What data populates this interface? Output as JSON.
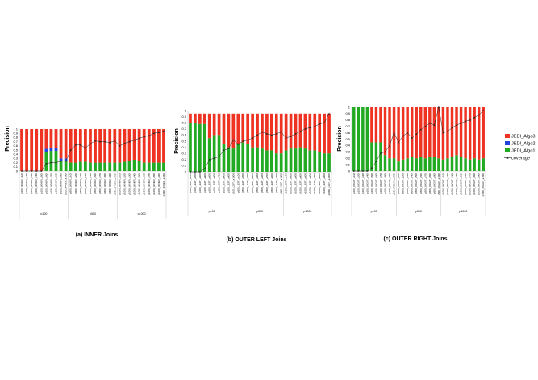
{
  "colors": {
    "algo3": "#ee3322",
    "algo2": "#2244dd",
    "algo1": "#22aa22",
    "coverage": "#222222",
    "axis": "#999999"
  },
  "legend": [
    "JEDI_Algo3",
    "JEDI_Algo2",
    "JEDI_Algo1",
    "coverage"
  ],
  "chart_data": [
    {
      "type": "bar",
      "stacked": true,
      "title": "(a) INNER Joins",
      "ylabel": "Precision",
      "ylim": [
        0,
        1
      ],
      "yticks": [
        "0",
        "0.1",
        "0.2",
        "0.3",
        "0.4",
        "0.5",
        "0.6",
        "0.7",
        "0.8",
        "0.9",
        "1"
      ],
      "groups": [
        {
          "label": "p100",
          "count": 10
        },
        {
          "label": "p500",
          "count": 10
        },
        {
          "label": "p1000",
          "count": 10
        }
      ],
      "categories": [
        "p100_INNER_a100",
        "p100_INNER_a200",
        "p100_INNER_a300",
        "p100_INNER_a400",
        "p100_INNER_a500",
        "p100_INNER_a600",
        "p100_INNER_a700",
        "p100_INNER_a800",
        "p100_INNER_a900",
        "p100_INNER_a1000",
        "p500_INNER_a100",
        "p500_INNER_a200",
        "p500_INNER_a300",
        "p500_INNER_a400",
        "p500_INNER_a500",
        "p500_INNER_a600",
        "p500_INNER_a700",
        "p500_INNER_a800",
        "p500_INNER_a900",
        "p500_INNER_a1000",
        "p1000_INNER_a100",
        "p1000_INNER_a200",
        "p1000_INNER_a300",
        "p1000_INNER_a400",
        "p1000_INNER_a500",
        "p1000_INNER_a600",
        "p1000_INNER_a700",
        "p1000_INNER_a800",
        "p1000_INNER_a900",
        "p1000_INNER_a1000"
      ],
      "series": [
        {
          "name": "JEDI_Algo1",
          "values": [
            0,
            0,
            0,
            0,
            0,
            0.45,
            0.48,
            0.48,
            0.25,
            0.25,
            0.2,
            0.2,
            0.22,
            0.22,
            0.2,
            0.2,
            0.2,
            0.2,
            0.2,
            0.2,
            0.2,
            0.22,
            0.25,
            0.27,
            0.25,
            0.2,
            0.2,
            0.2,
            0.2,
            0.2
          ]
        },
        {
          "name": "JEDI_Algo2",
          "values": [
            0,
            0,
            0,
            0,
            0,
            0.08,
            0.07,
            0.07,
            0.05,
            0.05,
            0,
            0,
            0,
            0,
            0,
            0,
            0,
            0,
            0,
            0,
            0,
            0,
            0,
            0,
            0,
            0,
            0,
            0,
            0,
            0
          ]
        },
        {
          "name": "JEDI_Algo3",
          "values": [
            1,
            1,
            1,
            1,
            1,
            0.47,
            0.45,
            0.45,
            0.7,
            0.7,
            0.8,
            0.8,
            0.78,
            0.78,
            0.8,
            0.8,
            0.8,
            0.8,
            0.8,
            0.8,
            0.8,
            0.78,
            0.75,
            0.73,
            0.75,
            0.8,
            0.8,
            0.8,
            0.8,
            0.8
          ]
        },
        {
          "name": "coverage",
          "kind": "line",
          "values": [
            0,
            0,
            0,
            0,
            0,
            0.18,
            0.2,
            0.2,
            0.24,
            0.24,
            0.5,
            0.62,
            0.62,
            0.55,
            0.65,
            0.72,
            0.7,
            0.7,
            0.68,
            0.72,
            0.6,
            0.66,
            0.7,
            0.74,
            0.78,
            0.82,
            0.84,
            0.9,
            0.92,
            0.95
          ]
        }
      ]
    },
    {
      "type": "bar",
      "stacked": true,
      "title": "(b) OUTER LEFT Joins",
      "ylabel": "Precision",
      "ylim": [
        0,
        1
      ],
      "yticks": [
        "0",
        "0.1",
        "0.2",
        "0.3",
        "0.4",
        "0.5",
        "0.6",
        "0.7",
        "0.8",
        "0.9",
        "1"
      ],
      "groups": [
        {
          "label": "p100",
          "count": 10
        },
        {
          "label": "p500",
          "count": 10
        },
        {
          "label": "p1000",
          "count": 10
        }
      ],
      "categories": [
        "p100_LEFT_a100",
        "p100_LEFT_a200",
        "p100_LEFT_a300",
        "p100_LEFT_a400",
        "p100_LEFT_a500",
        "p100_LEFT_a600",
        "p100_LEFT_a700",
        "p100_LEFT_a800",
        "p100_LEFT_a900",
        "p100_LEFT_a1000",
        "p500_LEFT_a100",
        "p500_LEFT_a200",
        "p500_LEFT_a300",
        "p500_LEFT_a400",
        "p500_LEFT_a500",
        "p500_LEFT_a600",
        "p500_LEFT_a700",
        "p500_LEFT_a800",
        "p500_LEFT_a900",
        "p500_LEFT_a1000",
        "p1000_LEFT_a100",
        "p1000_LEFT_a200",
        "p1000_LEFT_a300",
        "p1000_LEFT_a400",
        "p1000_LEFT_a500",
        "p1000_LEFT_a600",
        "p1000_LEFT_a700",
        "p1000_LEFT_a800",
        "p1000_LEFT_a900",
        "p1000_LEFT_a1000"
      ],
      "series": [
        {
          "name": "JEDI_Algo1",
          "values": [
            0.8,
            0.8,
            0.78,
            0.78,
            0.55,
            0.6,
            0.6,
            0.45,
            0.4,
            0.38,
            0.45,
            0.48,
            0.45,
            0.4,
            0.4,
            0.38,
            0.35,
            0.35,
            0.3,
            0.3,
            0.35,
            0.38,
            0.38,
            0.4,
            0.38,
            0.35,
            0.35,
            0.32,
            0.3,
            0.3
          ]
        },
        {
          "name": "JEDI_Algo2",
          "values": [
            0,
            0,
            0,
            0,
            0,
            0,
            0,
            0,
            0,
            0,
            0,
            0,
            0,
            0,
            0,
            0,
            0,
            0,
            0,
            0,
            0,
            0,
            0,
            0,
            0,
            0,
            0,
            0,
            0,
            0
          ]
        },
        {
          "name": "JEDI_Algo3",
          "values": [
            0.15,
            0.15,
            0.17,
            0.17,
            0.4,
            0.35,
            0.35,
            0.5,
            0.55,
            0.57,
            0.5,
            0.47,
            0.5,
            0.55,
            0.55,
            0.57,
            0.6,
            0.6,
            0.65,
            0.65,
            0.6,
            0.57,
            0.57,
            0.55,
            0.57,
            0.6,
            0.6,
            0.63,
            0.65,
            0.65
          ]
        },
        {
          "name": "coverage",
          "kind": "line",
          "values": [
            0,
            0,
            0,
            0.05,
            0.2,
            0.22,
            0.25,
            0.35,
            0.38,
            0.52,
            0.45,
            0.5,
            0.52,
            0.55,
            0.6,
            0.65,
            0.62,
            0.6,
            0.62,
            0.65,
            0.55,
            0.58,
            0.62,
            0.66,
            0.7,
            0.72,
            0.74,
            0.78,
            0.8,
            0.95
          ]
        }
      ]
    },
    {
      "type": "bar",
      "stacked": true,
      "title": "(c) OUTER RIGHT Joins",
      "ylabel": "Precision",
      "ylim": [
        0,
        1
      ],
      "yticks": [
        "0",
        "0.1",
        "0.2",
        "0.3",
        "0.4",
        "0.5",
        "0.6",
        "0.7",
        "0.8",
        "0.9",
        "1"
      ],
      "groups": [
        {
          "label": "p100",
          "count": 10
        },
        {
          "label": "p500",
          "count": 10
        },
        {
          "label": "p1000",
          "count": 10
        }
      ],
      "categories": [
        "p100_RIGHT_a100",
        "p100_RIGHT_a200",
        "p100_RIGHT_a300",
        "p100_RIGHT_a400",
        "p100_RIGHT_a500",
        "p100_RIGHT_a600",
        "p100_RIGHT_a700",
        "p100_RIGHT_a800",
        "p100_RIGHT_a900",
        "p100_RIGHT_a1000",
        "p500_RIGHT_a100",
        "p500_RIGHT_a200",
        "p500_RIGHT_a300",
        "p500_RIGHT_a400",
        "p500_RIGHT_a500",
        "p500_RIGHT_a600",
        "p500_RIGHT_a700",
        "p500_RIGHT_a800",
        "p500_RIGHT_a900",
        "p500_RIGHT_a1000",
        "p1000_RIGHT_a100",
        "p1000_RIGHT_a200",
        "p1000_RIGHT_a300",
        "p1000_RIGHT_a400",
        "p1000_RIGHT_a500",
        "p1000_RIGHT_a600",
        "p1000_RIGHT_a700",
        "p1000_RIGHT_a800",
        "p1000_RIGHT_a900",
        "p1000_RIGHT_a1000"
      ],
      "series": [
        {
          "name": "JEDI_Algo1",
          "values": [
            1,
            1,
            1,
            1,
            0.45,
            0.45,
            0.45,
            0.25,
            0.2,
            0.2,
            0.15,
            0.18,
            0.2,
            0.22,
            0.2,
            0.22,
            0.2,
            0.22,
            0.22,
            0.2,
            0.18,
            0.2,
            0.22,
            0.25,
            0.22,
            0.2,
            0.18,
            0.2,
            0.18,
            0.2
          ]
        },
        {
          "name": "JEDI_Algo2",
          "values": [
            0,
            0,
            0,
            0,
            0,
            0,
            0,
            0,
            0,
            0,
            0,
            0,
            0,
            0,
            0,
            0,
            0,
            0,
            0,
            0,
            0,
            0,
            0,
            0,
            0,
            0,
            0,
            0,
            0,
            0
          ]
        },
        {
          "name": "JEDI_Algo3",
          "values": [
            0,
            0,
            0,
            0,
            0.55,
            0.55,
            0.55,
            0.75,
            0.8,
            0.8,
            0.85,
            0.82,
            0.8,
            0.78,
            0.8,
            0.78,
            0.8,
            0.78,
            0.78,
            0.8,
            0.82,
            0.8,
            0.78,
            0.75,
            0.78,
            0.8,
            0.82,
            0.8,
            0.82,
            0.8
          ]
        },
        {
          "name": "coverage",
          "kind": "line",
          "values": [
            0,
            0,
            0,
            0,
            0.05,
            0.15,
            0.28,
            0.3,
            0.4,
            0.6,
            0.45,
            0.55,
            0.6,
            0.52,
            0.58,
            0.65,
            0.7,
            0.75,
            0.72,
            1.0,
            0.6,
            0.62,
            0.68,
            0.72,
            0.75,
            0.78,
            0.8,
            0.84,
            0.88,
            0.95
          ]
        }
      ]
    }
  ]
}
